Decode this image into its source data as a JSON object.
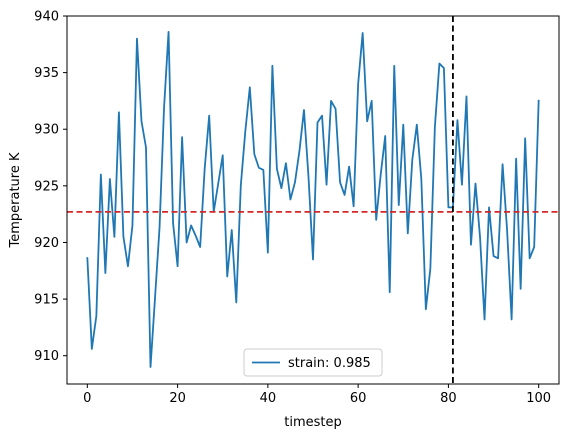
{
  "chart_data": {
    "type": "line",
    "xlabel": "timestep",
    "ylabel": "Temperature K",
    "xlim": [
      -4.5,
      104.5
    ],
    "ylim": [
      907.5,
      940
    ],
    "xticks": [
      0,
      20,
      40,
      60,
      80,
      100
    ],
    "yticks": [
      910,
      915,
      920,
      925,
      930,
      935,
      940
    ],
    "grid": false,
    "legend_position": "bottom-center",
    "series": [
      {
        "name": "strain: 0.985",
        "color": "#1f77b4",
        "x": [
          0,
          1,
          2,
          3,
          4,
          5,
          6,
          7,
          8,
          9,
          10,
          11,
          12,
          13,
          14,
          15,
          16,
          17,
          18,
          19,
          20,
          21,
          22,
          23,
          24,
          25,
          26,
          27,
          28,
          29,
          30,
          31,
          32,
          33,
          34,
          35,
          36,
          37,
          38,
          39,
          40,
          41,
          42,
          43,
          44,
          45,
          46,
          47,
          48,
          49,
          50,
          51,
          52,
          53,
          54,
          55,
          56,
          57,
          58,
          59,
          60,
          61,
          62,
          63,
          64,
          65,
          66,
          67,
          68,
          69,
          70,
          71,
          72,
          73,
          74,
          75,
          76,
          77,
          78,
          79,
          80,
          81,
          82,
          83,
          84,
          85,
          86,
          87,
          88,
          89,
          90,
          91,
          92,
          93,
          94,
          95,
          96,
          97,
          98,
          99,
          100
        ],
        "y": [
          918.7,
          910.6,
          913.5,
          926.0,
          917.3,
          925.6,
          920.5,
          931.5,
          920.5,
          917.9,
          921.5,
          938.0,
          930.7,
          928.4,
          909.0,
          915.1,
          921.3,
          931.9,
          938.6,
          921.7,
          917.9,
          929.3,
          920.0,
          921.5,
          920.6,
          919.6,
          926.5,
          931.2,
          922.7,
          925.2,
          927.7,
          917.0,
          921.1,
          914.7,
          925.0,
          929.8,
          933.7,
          927.8,
          926.6,
          926.4,
          919.1,
          935.6,
          926.5,
          924.8,
          927.0,
          923.8,
          925.3,
          928.1,
          931.7,
          925.8,
          918.5,
          930.6,
          931.2,
          925.1,
          932.5,
          931.8,
          925.3,
          924.2,
          926.7,
          923.2,
          934.0,
          938.5,
          930.7,
          932.5,
          922.0,
          926.0,
          929.4,
          915.6,
          935.6,
          923.3,
          930.4,
          920.8,
          927.3,
          930.4,
          925.6,
          914.1,
          917.7,
          930.2,
          935.8,
          935.4,
          923.1,
          923.1,
          930.8,
          925.1,
          932.9,
          919.8,
          925.2,
          920.5,
          913.2,
          923.1,
          918.8,
          918.6,
          926.9,
          921.1,
          913.2,
          927.4,
          915.9,
          929.2,
          918.6,
          919.6,
          932.6
        ]
      }
    ],
    "reference_lines": [
      {
        "orientation": "horizontal",
        "value": 922.7,
        "color": "#d62728",
        "style": "dashed"
      },
      {
        "orientation": "vertical",
        "value": 81,
        "color": "#000000",
        "style": "dashed"
      }
    ]
  }
}
